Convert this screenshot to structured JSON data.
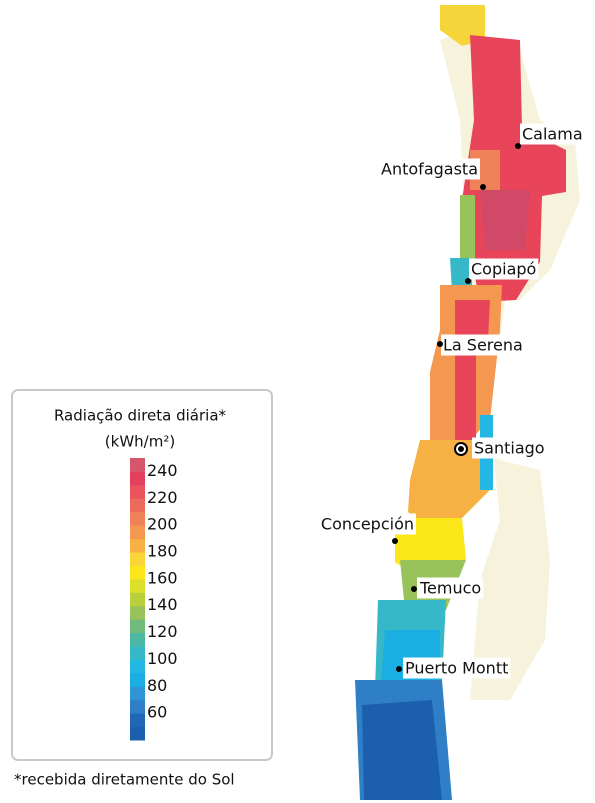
{
  "legend": {
    "title": "Radiação direta diária*",
    "unit": "(kWh/m²)",
    "range": [
      40,
      250
    ],
    "ticks": [
      240,
      220,
      200,
      180,
      160,
      140,
      120,
      100,
      80,
      60
    ],
    "colors": [
      "#1c5fae",
      "#2267b5",
      "#2f7fc7",
      "#2f95d6",
      "#1aaee3",
      "#22b7e5",
      "#36b8c9",
      "#4bb8a6",
      "#6fbb7c",
      "#97c35a",
      "#b9cf3c",
      "#dcdf2a",
      "#fbe61a",
      "#fad53a",
      "#f7b044",
      "#f49751",
      "#f0825a",
      "#ec6a5c",
      "#e9545d",
      "#e2405d",
      "#d6576d"
    ]
  },
  "cities": [
    "Calama",
    "Antofagasta",
    "Copiapó",
    "La Serena",
    "Santiago",
    "Concepción",
    "Temuco",
    "Puerto Montt"
  ],
  "footnote": "*recebida diretamente do Sol"
}
